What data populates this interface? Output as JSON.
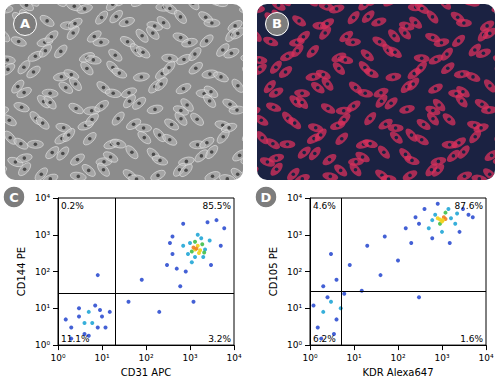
{
  "panels": [
    {
      "title": "A",
      "type": "image",
      "colors": [
        "#8c8c8c",
        "#b9b9b9"
      ]
    },
    {
      "title": "B",
      "type": "image",
      "colors": [
        "#1b2242",
        "#d8305c"
      ]
    }
  ],
  "chart_data": [
    {
      "type": "scatter",
      "title": "C",
      "xlabel": "CD31 APC",
      "ylabel": "CD144 PE",
      "log": true,
      "grid": false,
      "xlim": [
        1,
        10000
      ],
      "ylim": [
        1,
        10000
      ],
      "xticks": [
        {
          "value": 1,
          "label": "10⁰"
        },
        {
          "value": 10,
          "label": "10¹"
        },
        {
          "value": 100,
          "label": "10²"
        },
        {
          "value": 1000,
          "label": "10³"
        },
        {
          "value": 10000,
          "label": "10⁴"
        }
      ],
      "yticks": [
        {
          "value": 1,
          "label": "10⁰"
        },
        {
          "value": 10,
          "label": "10¹"
        },
        {
          "value": 100,
          "label": "10²"
        },
        {
          "value": 1000,
          "label": "10³"
        },
        {
          "value": 10000,
          "label": "10⁴"
        }
      ],
      "gate": {
        "x": 20,
        "y": 25
      },
      "quadrants": [
        {
          "position": "upper left",
          "value": 0.2,
          "label": "0.2%"
        },
        {
          "position": "upper right",
          "value": 85.5,
          "label": "85.5%"
        },
        {
          "position": "lower left",
          "value": 11.1,
          "label": "11.1%"
        },
        {
          "position": "lower right",
          "value": 3.2,
          "label": "3.2%"
        }
      ],
      "points": [
        [
          2,
          3
        ],
        [
          3,
          6
        ],
        [
          4,
          2
        ],
        [
          5,
          8
        ],
        [
          6,
          4
        ],
        [
          8,
          3
        ],
        [
          3,
          10
        ],
        [
          7,
          12
        ],
        [
          10,
          6
        ],
        [
          12,
          3
        ],
        [
          2,
          1.5
        ],
        [
          5,
          1.8
        ],
        [
          9,
          9
        ],
        [
          1.5,
          5
        ],
        [
          15,
          8
        ],
        [
          4,
          4
        ],
        [
          40,
          15
        ],
        [
          80,
          60
        ],
        [
          200,
          8
        ],
        [
          600,
          40
        ],
        [
          1200,
          15
        ],
        [
          8,
          80
        ],
        [
          300,
          150
        ],
        [
          400,
          900
        ],
        [
          500,
          120
        ],
        [
          700,
          2000
        ],
        [
          3000,
          150
        ],
        [
          5000,
          500
        ],
        [
          6000,
          1500
        ],
        [
          2500,
          2200
        ],
        [
          400,
          300
        ],
        [
          800,
          100
        ],
        [
          4000,
          2500
        ],
        [
          350,
          600
        ],
        [
          900,
          300
        ],
        [
          1000,
          600
        ],
        [
          1300,
          250
        ],
        [
          1800,
          800
        ],
        [
          2200,
          400
        ],
        [
          1500,
          1000
        ],
        [
          700,
          500
        ],
        [
          2800,
          700
        ],
        [
          1100,
          180
        ],
        [
          2000,
          250
        ],
        [
          1100,
          350
        ],
        [
          1900,
          550
        ],
        [
          1300,
          650
        ],
        [
          2100,
          330
        ],
        [
          1300,
          400
        ],
        [
          1500,
          500
        ],
        [
          1700,
          380
        ],
        [
          1200,
          450
        ],
        [
          1600,
          320
        ],
        [
          1400,
          420
        ]
      ],
      "colors": [
        "#2f4fd0",
        "#2f4fd0",
        "#2f4fd0",
        "#21a6d6",
        "#21a6d6",
        "#2f4fd0",
        "#2f4fd0",
        "#2f4fd0",
        "#2f4fd0",
        "#2f4fd0",
        "#2f4fd0",
        "#2f4fd0",
        "#2f4fd0",
        "#2f4fd0",
        "#2f4fd0",
        "#21a6d6",
        "#2f4fd0",
        "#2f4fd0",
        "#2f4fd0",
        "#2f4fd0",
        "#2f4fd0",
        "#2f4fd0",
        "#2f4fd0",
        "#2f4fd0",
        "#2f4fd0",
        "#2f4fd0",
        "#2f4fd0",
        "#2f4fd0",
        "#2f4fd0",
        "#2f4fd0",
        "#2f4fd0",
        "#2f4fd0",
        "#2f4fd0",
        "#2f4fd0",
        "#21a6d6",
        "#21a6d6",
        "#21a6d6",
        "#21a6d6",
        "#21a6d6",
        "#21a6d6",
        "#21a6d6",
        "#21a6d6",
        "#21a6d6",
        "#21a6d6",
        "#3fbf4a",
        "#3fbf4a",
        "#3fbf4a",
        "#3fbf4a",
        "#f2d21b",
        "#f2d21b",
        "#f2d21b",
        "#f07f1f",
        "#f2d21b",
        "#f07f1f"
      ]
    },
    {
      "type": "scatter",
      "title": "D",
      "xlabel": "KDR Alexa647",
      "ylabel": "CD105 PE",
      "log": true,
      "grid": false,
      "xlim": [
        1,
        10000
      ],
      "ylim": [
        1,
        10000
      ],
      "xticks": [
        {
          "value": 1,
          "label": "10⁰"
        },
        {
          "value": 10,
          "label": "10¹"
        },
        {
          "value": 100,
          "label": "10²"
        },
        {
          "value": 1000,
          "label": "10³"
        },
        {
          "value": 10000,
          "label": "10⁴"
        }
      ],
      "yticks": [
        {
          "value": 1,
          "label": "10⁰"
        },
        {
          "value": 10,
          "label": "10¹"
        },
        {
          "value": 100,
          "label": "10²"
        },
        {
          "value": 1000,
          "label": "10³"
        },
        {
          "value": 10000,
          "label": "10⁴"
        }
      ],
      "gate": {
        "x": 5,
        "y": 30
      },
      "quadrants": [
        {
          "position": "upper left",
          "value": 4.6,
          "label": "4.6%"
        },
        {
          "position": "upper right",
          "value": 87.6,
          "label": "87.6%"
        },
        {
          "position": "lower left",
          "value": 6.2,
          "label": "6.2%"
        },
        {
          "position": "lower right",
          "value": 1.6,
          "label": "1.6%"
        }
      ],
      "points": [
        [
          1.5,
          3
        ],
        [
          2,
          8
        ],
        [
          3,
          15
        ],
        [
          4,
          5
        ],
        [
          2.5,
          20
        ],
        [
          1.2,
          12
        ],
        [
          3.5,
          2
        ],
        [
          5,
          10
        ],
        [
          2,
          40
        ],
        [
          6,
          25
        ],
        [
          1.8,
          1.5
        ],
        [
          4,
          60
        ],
        [
          15,
          30
        ],
        [
          40,
          80
        ],
        [
          100,
          200
        ],
        [
          20,
          500
        ],
        [
          3,
          300
        ],
        [
          300,
          20
        ],
        [
          8,
          150
        ],
        [
          50,
          900
        ],
        [
          200,
          600
        ],
        [
          300,
          2000
        ],
        [
          400,
          5000
        ],
        [
          600,
          800
        ],
        [
          2500,
          1200
        ],
        [
          4000,
          3500
        ],
        [
          3000,
          5000
        ],
        [
          800,
          7000
        ],
        [
          150,
          1500
        ],
        [
          1500,
          600
        ],
        [
          5000,
          3000
        ],
        [
          250,
          3000
        ],
        [
          500,
          1500
        ],
        [
          700,
          3500
        ],
        [
          900,
          2000
        ],
        [
          1200,
          4000
        ],
        [
          1600,
          2800
        ],
        [
          2000,
          2000
        ],
        [
          1000,
          1200
        ],
        [
          1400,
          5000
        ],
        [
          600,
          2500
        ],
        [
          2200,
          3800
        ],
        [
          900,
          2600
        ],
        [
          1100,
          3000
        ],
        [
          1000,
          2300
        ],
        [
          1200,
          2700
        ],
        [
          800,
          2800
        ],
        [
          1050,
          2500
        ]
      ],
      "colors": [
        "#2f4fd0",
        "#21a6d6",
        "#21a6d6",
        "#2f4fd0",
        "#2f4fd0",
        "#2f4fd0",
        "#2f4fd0",
        "#21a6d6",
        "#2f4fd0",
        "#2f4fd0",
        "#2f4fd0",
        "#2f4fd0",
        "#2f4fd0",
        "#2f4fd0",
        "#2f4fd0",
        "#2f4fd0",
        "#2f4fd0",
        "#2f4fd0",
        "#2f4fd0",
        "#2f4fd0",
        "#2f4fd0",
        "#2f4fd0",
        "#2f4fd0",
        "#2f4fd0",
        "#2f4fd0",
        "#2f4fd0",
        "#2f4fd0",
        "#2f4fd0",
        "#2f4fd0",
        "#2f4fd0",
        "#2f4fd0",
        "#2f4fd0",
        "#21a6d6",
        "#21a6d6",
        "#3fbf4a",
        "#3fbf4a",
        "#21a6d6",
        "#21a6d6",
        "#21a6d6",
        "#21a6d6",
        "#21a6d6",
        "#21a6d6",
        "#f2d21b",
        "#f07f1f",
        "#f2d21b",
        "#f07f1f",
        "#f2d21b",
        "#f2d21b"
      ]
    }
  ]
}
